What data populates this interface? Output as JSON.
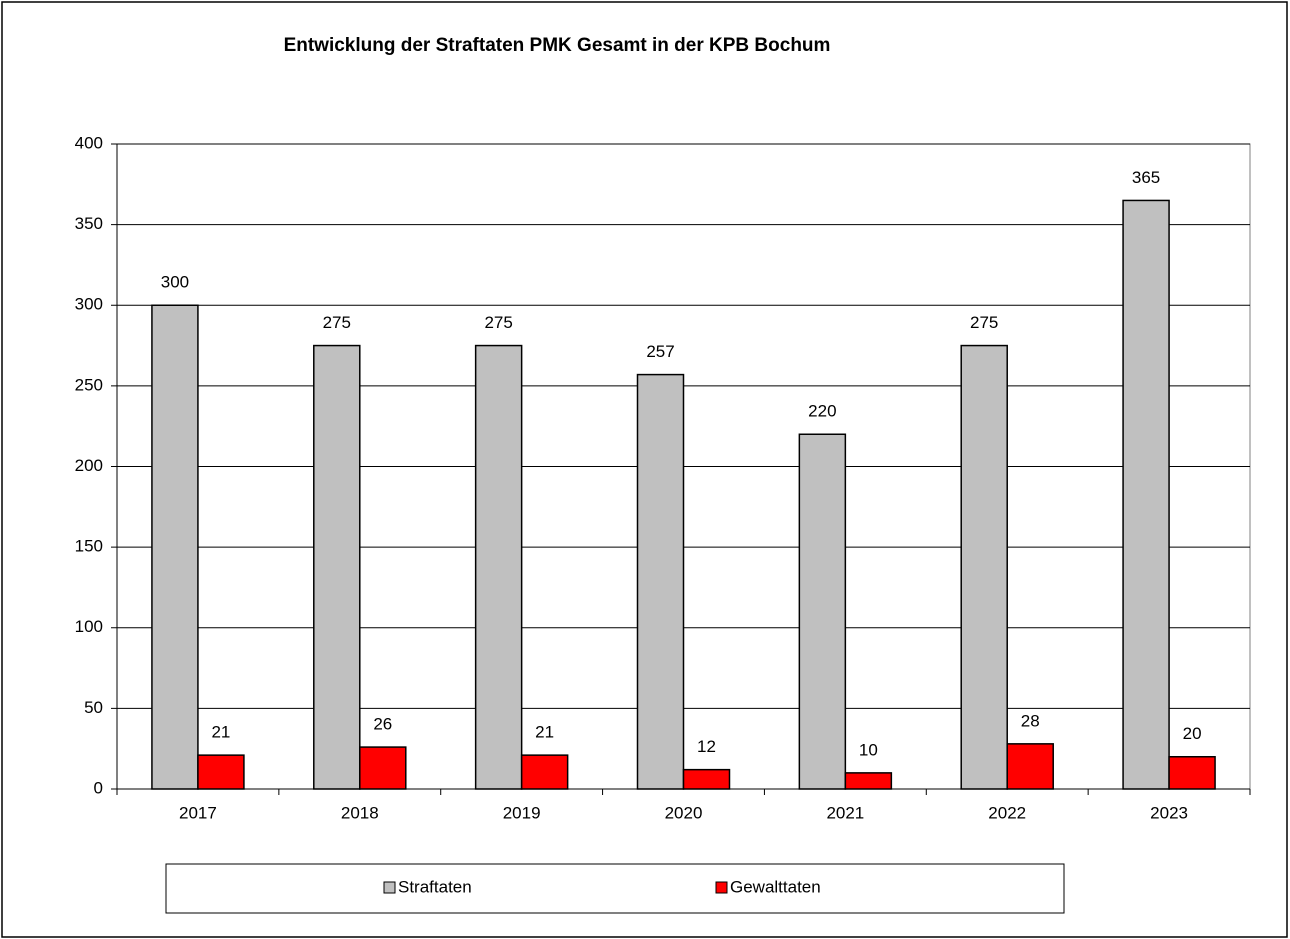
{
  "chart_data": {
    "type": "bar",
    "title": "Entwicklung der Straftaten PMK Gesamt in der KPB Bochum",
    "categories": [
      "2017",
      "2018",
      "2019",
      "2020",
      "2021",
      "2022",
      "2023"
    ],
    "series": [
      {
        "name": "Straftaten",
        "color": "#c0c0c0",
        "values": [
          300,
          275,
          275,
          257,
          220,
          275,
          365
        ]
      },
      {
        "name": "Gewalttaten",
        "color": "#ff0000",
        "values": [
          21,
          26,
          21,
          12,
          10,
          28,
          20
        ]
      }
    ],
    "ylim": [
      0,
      400
    ],
    "yticks": [
      0,
      50,
      100,
      150,
      200,
      250,
      300,
      350,
      400
    ],
    "grid": true,
    "legend": "bottom"
  }
}
